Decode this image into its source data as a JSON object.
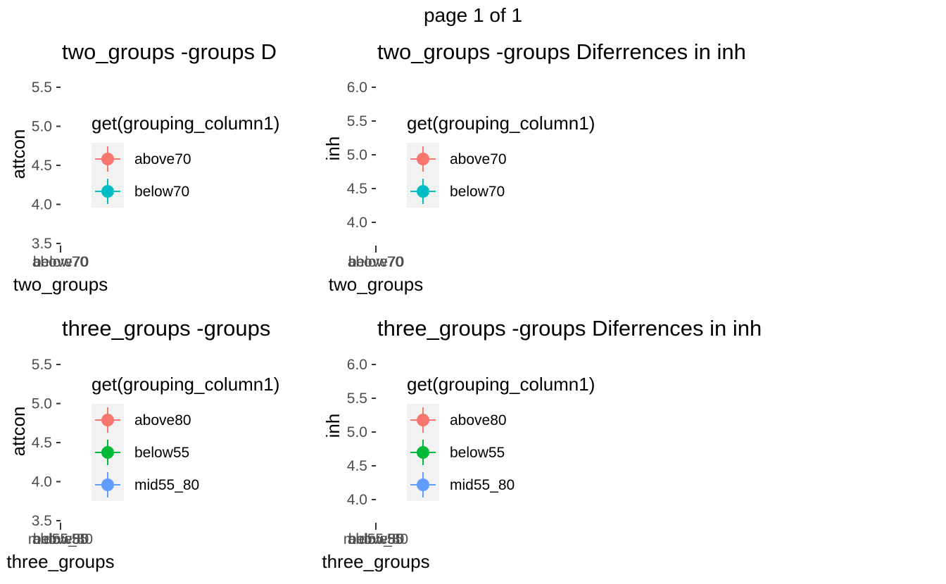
{
  "page": {
    "title": "page 1 of 1"
  },
  "colors": {
    "above70": "#F8766D",
    "below70": "#00BFC4",
    "above80": "#F8766D",
    "below55": "#00BA38",
    "mid55_80": "#619CFF",
    "legend_bg": "#F2F2F2",
    "axis_text": "#4D4D4D",
    "tick": "#333333"
  },
  "chart_data": [
    {
      "type": "scatter",
      "title": "two_groups -groups D",
      "xlabel": "two_groups",
      "ylabel": "attcon",
      "x_tick_labels": [
        "above70",
        "below70"
      ],
      "y_ticks": [
        3.5,
        4.0,
        4.5,
        5.0,
        5.5
      ],
      "y_tick_labels": [
        "3.5",
        "4.0",
        "4.5",
        "5.0",
        "5.5"
      ],
      "ylim": [
        3.5,
        5.5
      ],
      "legend": {
        "title": "get(grouping_column1)",
        "position": "right",
        "entries": [
          "above70",
          "below70"
        ]
      },
      "series": [
        {
          "name": "above70",
          "values": []
        },
        {
          "name": "below70",
          "values": []
        }
      ]
    },
    {
      "type": "scatter",
      "title": "two_groups -groups Diferrences in  inh",
      "xlabel": "two_groups",
      "ylabel": "inh",
      "x_tick_labels": [
        "above70",
        "below70"
      ],
      "y_ticks": [
        4.0,
        4.5,
        5.0,
        5.5,
        6.0
      ],
      "y_tick_labels": [
        "4.0",
        "4.5",
        "5.0",
        "5.5",
        "6.0"
      ],
      "ylim": [
        4.0,
        6.0
      ],
      "legend": {
        "title": "get(grouping_column1)",
        "position": "right",
        "entries": [
          "above70",
          "below70"
        ]
      },
      "series": [
        {
          "name": "above70",
          "values": []
        },
        {
          "name": "below70",
          "values": []
        }
      ]
    },
    {
      "type": "scatter",
      "title": "three_groups -groups",
      "xlabel": "three_groups",
      "ylabel": "attcon",
      "x_tick_labels": [
        "above80",
        "below55",
        "mid55_80"
      ],
      "y_ticks": [
        3.5,
        4.0,
        4.5,
        5.0,
        5.5
      ],
      "y_tick_labels": [
        "3.5",
        "4.0",
        "4.5",
        "5.0",
        "5.5"
      ],
      "ylim": [
        3.5,
        5.5
      ],
      "legend": {
        "title": "get(grouping_column1)",
        "position": "right",
        "entries": [
          "above80",
          "below55",
          "mid55_80"
        ]
      },
      "series": [
        {
          "name": "above80",
          "values": []
        },
        {
          "name": "below55",
          "values": []
        },
        {
          "name": "mid55_80",
          "values": []
        }
      ]
    },
    {
      "type": "scatter",
      "title": "three_groups -groups Diferrences in  inh",
      "xlabel": "three_groups",
      "ylabel": "inh",
      "x_tick_labels": [
        "above80",
        "below55",
        "mid55_80"
      ],
      "y_ticks": [
        4.0,
        4.5,
        5.0,
        5.5,
        6.0
      ],
      "y_tick_labels": [
        "4.0",
        "4.5",
        "5.0",
        "5.5",
        "6.0"
      ],
      "ylim": [
        4.0,
        6.0
      ],
      "legend": {
        "title": "get(grouping_column1)",
        "position": "right",
        "entries": [
          "above80",
          "below55",
          "mid55_80"
        ]
      },
      "series": [
        {
          "name": "above80",
          "values": []
        },
        {
          "name": "below55",
          "values": []
        },
        {
          "name": "mid55_80",
          "values": []
        }
      ]
    }
  ]
}
